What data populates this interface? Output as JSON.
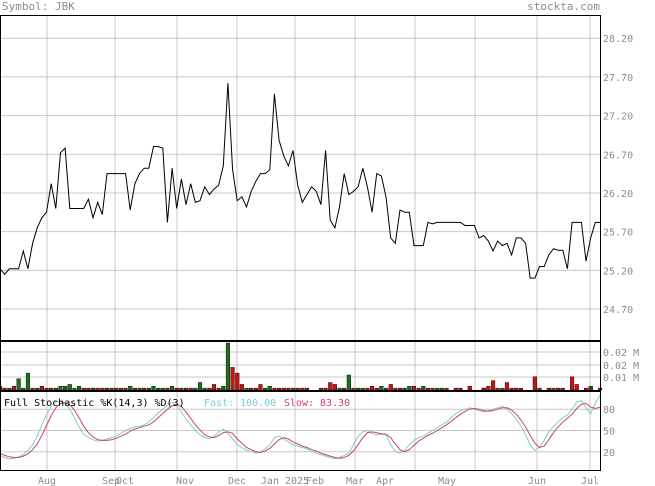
{
  "header": {
    "symbol": "Symbol: JBK",
    "site": "stockta.com"
  },
  "colors": {
    "price_line": "#000000",
    "grid": "#c8c8c8",
    "frame": "#000000",
    "up_bar": "#1e6e1e",
    "down_bar": "#cc1111",
    "fast": "#7bd0cc",
    "slow": "#c8446e",
    "label": "#8c8c8c"
  },
  "chart_data": [
    {
      "type": "line",
      "panel": "price",
      "ylim": [
        24.3,
        28.5
      ],
      "yticks": [
        "28.20",
        "27.70",
        "27.20",
        "26.70",
        "26.20",
        "25.70",
        "25.20",
        "24.70"
      ],
      "ytick_values": [
        28.2,
        27.7,
        27.2,
        26.7,
        26.2,
        25.7,
        25.2,
        24.7
      ],
      "xlabels": [
        "Aug",
        "Sep",
        "Oct",
        "Nov",
        "Dec",
        "Jan 2025",
        "Feb",
        "Mar",
        "Apr",
        "May",
        "Jun",
        "Jul"
      ],
      "series": [
        {
          "values": [
            25.22,
            25.15,
            25.22,
            25.22,
            25.22,
            25.45,
            25.22,
            25.55,
            25.75,
            25.88,
            25.95,
            26.32,
            26.0,
            26.72,
            26.78,
            26.0,
            26.0,
            26.0,
            26.0,
            26.12,
            25.88,
            26.08,
            25.92,
            26.45,
            26.45,
            26.45,
            26.45,
            26.45,
            25.98,
            26.32,
            26.45,
            26.52,
            26.52,
            26.8,
            26.8,
            26.78,
            25.82,
            26.52,
            26.0,
            26.38,
            26.05,
            26.32,
            26.08,
            26.1,
            26.28,
            26.18,
            26.25,
            26.3,
            26.55,
            27.62,
            26.5,
            26.1,
            26.15,
            26.02,
            26.22,
            26.35,
            26.45,
            26.45,
            26.5,
            27.48,
            26.88,
            26.68,
            26.55,
            26.75,
            26.3,
            26.08,
            26.18,
            26.28,
            26.22,
            26.05,
            26.75,
            25.85,
            25.75,
            26.02,
            26.45,
            26.18,
            26.22,
            26.28,
            26.52,
            26.28,
            25.95,
            26.45,
            26.42,
            26.15,
            25.62,
            25.55,
            25.98,
            25.95,
            25.95,
            25.52,
            25.52,
            25.52,
            25.82,
            25.8,
            25.82,
            25.82,
            25.82,
            25.82,
            25.82,
            25.82,
            25.78,
            25.78,
            25.78,
            25.62,
            25.65,
            25.58,
            25.45,
            25.58,
            25.52,
            25.55,
            25.4,
            25.62,
            25.62,
            25.55,
            25.1,
            25.1,
            25.25,
            25.25,
            25.4,
            25.48,
            25.46,
            25.46,
            25.22,
            25.82,
            25.82,
            25.82,
            25.32,
            25.62,
            25.82,
            25.82
          ]
        }
      ]
    },
    {
      "type": "bar",
      "panel": "volume",
      "yticks": [
        "0.02 M",
        "0.02 M",
        "0.01 M"
      ],
      "series": [
        {
          "name": "up",
          "values": [
            0.002,
            0,
            0.001,
            0,
            0.006,
            0.001,
            0.009,
            0,
            0.001,
            0,
            0,
            0,
            0.001,
            0.002,
            0.002,
            0.003,
            0.001,
            0.002,
            0,
            0,
            0.001,
            0,
            0,
            0,
            0.001,
            0,
            0.001,
            0,
            0.002,
            0,
            0.001,
            0,
            0.001,
            0.002,
            0.001,
            0.001,
            0,
            0.002,
            0,
            0,
            0.001,
            0,
            0.001,
            0.004,
            0.001,
            0,
            0,
            0,
            0.002,
            0.025,
            0,
            0,
            0,
            0.001,
            0,
            0,
            0,
            0.001,
            0.002,
            0,
            0,
            0,
            0,
            0.001,
            0,
            0,
            0,
            0,
            0,
            0,
            0,
            0,
            0,
            0.001,
            0,
            0.008,
            0,
            0.001,
            0.001,
            0,
            0,
            0,
            0.002,
            0.001,
            0,
            0,
            0,
            0.001,
            0.002,
            0,
            0,
            0.002,
            0,
            0,
            0.001,
            0.001,
            0,
            0,
            0,
            0,
            0,
            0,
            0,
            0,
            0.001,
            0,
            0,
            0,
            0.001,
            0,
            0,
            0,
            0,
            0,
            0,
            0,
            0,
            0,
            0,
            0.001,
            0,
            0,
            0,
            0,
            0,
            0,
            0,
            0.002,
            0,
            0
          ]
        },
        {
          "name": "down",
          "values": [
            0,
            0.001,
            0,
            0.002,
            0,
            0,
            0,
            0.001,
            0,
            0.002,
            0.001,
            0.001,
            0,
            0,
            0,
            0,
            0,
            0,
            0.001,
            0.001,
            0,
            0.001,
            0.001,
            0.001,
            0,
            0.001,
            0,
            0.001,
            0,
            0.001,
            0,
            0.001,
            0,
            0,
            0,
            0,
            0.001,
            0,
            0.001,
            0.001,
            0,
            0.001,
            0,
            0,
            0,
            0.001,
            0.003,
            0.001,
            0,
            0,
            0.012,
            0.009,
            0.003,
            0,
            0.001,
            0.001,
            0.003,
            0,
            0,
            0.001,
            0.001,
            0.001,
            0.001,
            0,
            0.001,
            0.001,
            0.001,
            0,
            0,
            0.001,
            0.001,
            0.004,
            0.003,
            0,
            0.001,
            0,
            0.001,
            0,
            0,
            0.001,
            0.002,
            0.001,
            0,
            0,
            0.003,
            0.001,
            0.001,
            0,
            0,
            0.002,
            0.001,
            0,
            0.001,
            0.001,
            0,
            0,
            0.001,
            0,
            0.001,
            0.001,
            0,
            0.002,
            0,
            0,
            0.001,
            0.002,
            0.005,
            0.001,
            0,
            0.004,
            0.001,
            0.001,
            0.001,
            0,
            0,
            0.007,
            0.001,
            0,
            0.001,
            0,
            0.001,
            0.001,
            0,
            0.007,
            0.003,
            0,
            0.001,
            0.001,
            0,
            0.001,
            0
          ]
        }
      ]
    },
    {
      "type": "line",
      "panel": "stochastic",
      "title": "Full Stochastic %K(14,3) %D(3)",
      "legend": {
        "fast_label": "Fast:",
        "fast_value": "100.00",
        "slow_label": "Slow:",
        "slow_value": "83.30"
      },
      "ylim": [
        0,
        100
      ],
      "yticks": [
        "80",
        "50",
        "20"
      ],
      "ytick_values": [
        80,
        50,
        20
      ],
      "series": [
        {
          "name": "Fast",
          "values": [
            15,
            12,
            10,
            11,
            13,
            16,
            22,
            30,
            42,
            58,
            72,
            84,
            90,
            91,
            88,
            80,
            68,
            55,
            45,
            40,
            37,
            35,
            36,
            38,
            40,
            42,
            46,
            50,
            53,
            55,
            56,
            58,
            62,
            68,
            75,
            80,
            86,
            90,
            85,
            76,
            66,
            58,
            50,
            44,
            40,
            38,
            42,
            48,
            52,
            46,
            38,
            30,
            26,
            22,
            20,
            18,
            20,
            24,
            30,
            40,
            42,
            38,
            34,
            30,
            28,
            26,
            24,
            20,
            18,
            16,
            14,
            12,
            10,
            12,
            15,
            18,
            30,
            42,
            48,
            50,
            46,
            44,
            46,
            44,
            30,
            20,
            18,
            22,
            30,
            36,
            40,
            42,
            46,
            50,
            54,
            58,
            62,
            68,
            74,
            78,
            80,
            82,
            80,
            78,
            76,
            78,
            80,
            82,
            84,
            80,
            74,
            66,
            56,
            44,
            30,
            22,
            26,
            36,
            48,
            56,
            62,
            68,
            72,
            80,
            90,
            92,
            82,
            74,
            88,
            100
          ]
        },
        {
          "name": "Slow",
          "values": [
            18,
            15,
            13,
            12,
            12,
            14,
            17,
            23,
            31,
            43,
            57,
            71,
            82,
            88,
            89,
            86,
            79,
            68,
            56,
            47,
            41,
            37,
            36,
            36,
            37,
            39,
            42,
            45,
            49,
            52,
            54,
            56,
            58,
            62,
            68,
            74,
            80,
            85,
            87,
            84,
            76,
            67,
            58,
            51,
            44,
            41,
            40,
            43,
            47,
            48,
            46,
            38,
            32,
            26,
            23,
            20,
            19,
            21,
            25,
            31,
            37,
            40,
            38,
            34,
            31,
            28,
            26,
            23,
            21,
            18,
            16,
            14,
            12,
            11,
            12,
            15,
            21,
            30,
            40,
            47,
            48,
            47,
            45,
            45,
            40,
            31,
            23,
            20,
            23,
            29,
            35,
            39,
            43,
            46,
            50,
            54,
            58,
            63,
            68,
            73,
            77,
            80,
            81,
            80,
            78,
            77,
            78,
            80,
            82,
            82,
            79,
            73,
            65,
            55,
            43,
            32,
            26,
            28,
            37,
            47,
            55,
            62,
            67,
            73,
            81,
            87,
            88,
            83,
            81,
            83
          ]
        }
      ]
    }
  ]
}
